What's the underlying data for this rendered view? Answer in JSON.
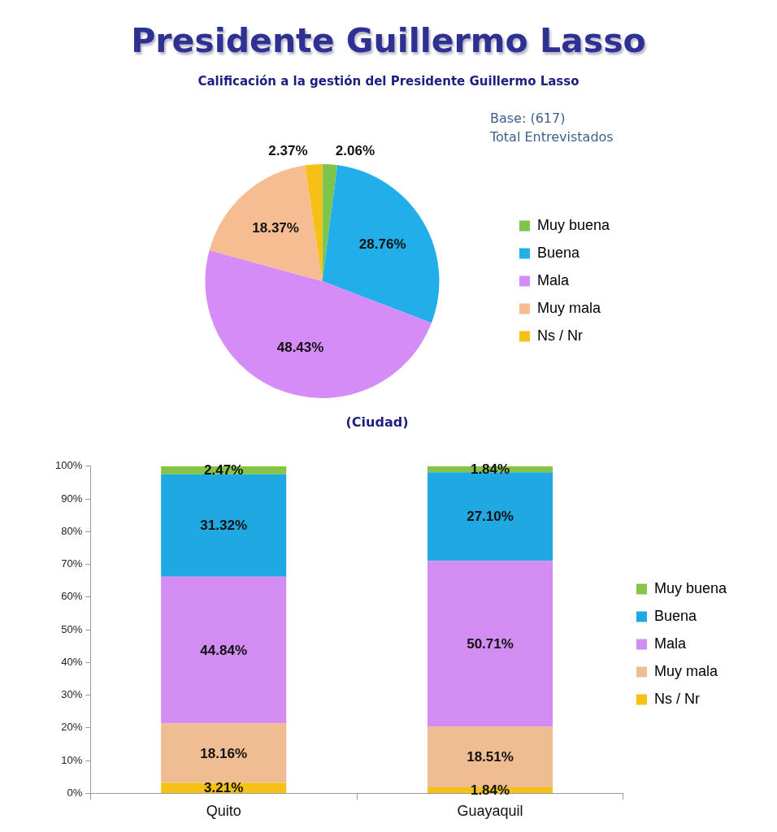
{
  "chart_data": [
    {
      "type": "pie",
      "title": "Presidente Guillermo Lasso",
      "subtitle": "Calificación a la gestión del Presidente Guillermo Lasso",
      "annotations": [
        "Base: (617)",
        "Total Entrevistados"
      ],
      "categories": [
        "Muy buena",
        "Buena",
        "Mala",
        "Muy mala",
        "Ns / Nr"
      ],
      "values": [
        2.06,
        28.76,
        48.43,
        18.37,
        2.37
      ],
      "colors": [
        "#7cc44a",
        "#22aee8",
        "#d68cf7",
        "#f6bd92",
        "#f6c115"
      ],
      "value_labels": [
        "2.06%",
        "28.76%",
        "48.43%",
        "18.37%",
        "2.37%"
      ],
      "legend": "right"
    },
    {
      "type": "bar",
      "title": "(Ciudad)",
      "categories": [
        "Quito",
        "Guayaquil"
      ],
      "stacked": true,
      "series": [
        {
          "name": "Ns / Nr",
          "color": "#f6c115",
          "values": [
            3.21,
            1.84
          ],
          "value_labels": [
            "3.21%",
            "1.84%"
          ]
        },
        {
          "name": "Muy mala",
          "color": "#f0bd93",
          "values": [
            18.16,
            18.51
          ],
          "value_labels": [
            "18.16%",
            "18.51%"
          ]
        },
        {
          "name": "Mala",
          "color": "#d28cf2",
          "values": [
            44.84,
            50.71
          ],
          "value_labels": [
            "44.84%",
            "50.71%"
          ]
        },
        {
          "name": "Buena",
          "color": "#20a8e2",
          "values": [
            31.32,
            27.1
          ],
          "value_labels": [
            "31.32%",
            "27.10%"
          ]
        },
        {
          "name": "Muy buena",
          "color": "#86c448",
          "values": [
            2.47,
            1.84
          ],
          "value_labels": [
            "2.47%",
            "1.84%"
          ]
        }
      ],
      "ylim": [
        0,
        100
      ],
      "yticks": [
        {
          "value": 0,
          "label": "0%"
        },
        {
          "value": 10,
          "label": "10%"
        },
        {
          "value": 20,
          "label": "20%"
        },
        {
          "value": 30,
          "label": "30%"
        },
        {
          "value": 40,
          "label": "40%"
        },
        {
          "value": 50,
          "label": "50%"
        },
        {
          "value": 60,
          "label": "60%"
        },
        {
          "value": 70,
          "label": "70%"
        },
        {
          "value": 80,
          "label": "80%"
        },
        {
          "value": 90,
          "label": "90%"
        },
        {
          "value": 100,
          "label": "100%"
        }
      ],
      "legend": "right"
    }
  ]
}
